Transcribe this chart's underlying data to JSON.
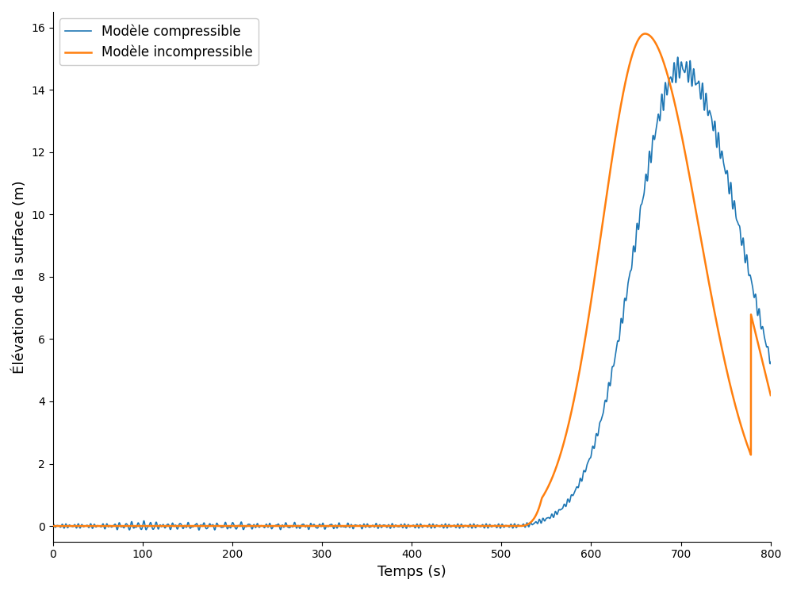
{
  "title": "",
  "xlabel": "Temps (s)",
  "ylabel": "Élévation de la surface (m)",
  "xlim": [
    0,
    800
  ],
  "ylim": [
    -0.5,
    16.5
  ],
  "yticks": [
    0,
    2,
    4,
    6,
    8,
    10,
    12,
    14,
    16
  ],
  "xticks": [
    0,
    100,
    200,
    300,
    400,
    500,
    600,
    700,
    800
  ],
  "color_compressible": "#1f77b4",
  "color_incompressible": "#ff7f0e",
  "label_compressible": "Modèle compressible",
  "label_incompressible": "Modèle incompressible",
  "figsize": [
    10.0,
    7.45
  ],
  "dpi": 100,
  "orange_peak_t": 660,
  "orange_peak_amp": 15.8,
  "orange_rise_sigma": 48,
  "orange_fall_sigma": 60,
  "orange_start": 520,
  "orange_cliff_t": 778,
  "orange_cliff_val": 6.8,
  "orange_end_val": 4.2,
  "blue_peak_t": 700,
  "blue_peak_amp": 14.7,
  "blue_rise_sigma": 52,
  "blue_fall_sigma": 70,
  "blue_start": 500,
  "blue_osc_freq": 0.22,
  "blue_osc_amp_base": 0.07,
  "blue_osc_amp_scale": 0.022
}
